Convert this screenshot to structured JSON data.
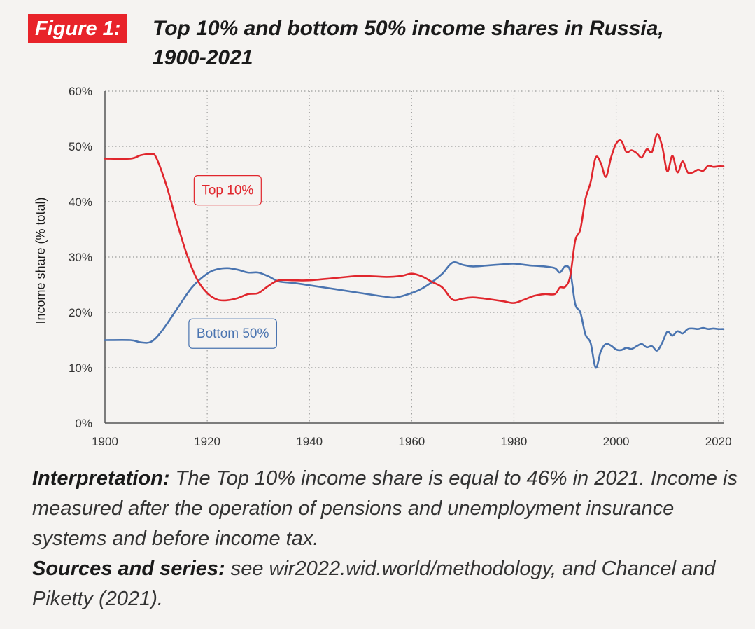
{
  "figure": {
    "badge": "Figure 1:",
    "title_line1": "Top 10% and bottom 50% income shares in Russia,",
    "title_line2": "1900-2021"
  },
  "chart_data": {
    "type": "line",
    "xlabel": "",
    "ylabel": "Income share (% total)",
    "xlim": [
      1900,
      2021
    ],
    "ylim": [
      0,
      60
    ],
    "x_ticks": [
      1900,
      1920,
      1940,
      1960,
      1980,
      2000,
      2020
    ],
    "y_ticks": [
      0,
      10,
      20,
      30,
      40,
      50,
      60
    ],
    "y_tick_labels": [
      "0%",
      "10%",
      "20%",
      "30%",
      "40%",
      "50%",
      "60%"
    ],
    "grid": true,
    "legend": "inline-labels",
    "series": [
      {
        "name": "Top 10%",
        "color": "#e0262d",
        "points": [
          [
            1900,
            47.8
          ],
          [
            1905,
            47.8
          ],
          [
            1907,
            48.4
          ],
          [
            1909,
            48.6
          ],
          [
            1910,
            48.0
          ],
          [
            1912,
            43.0
          ],
          [
            1914,
            36.5
          ],
          [
            1916,
            30.5
          ],
          [
            1918,
            26.0
          ],
          [
            1920,
            23.5
          ],
          [
            1922,
            22.3
          ],
          [
            1924,
            22.2
          ],
          [
            1926,
            22.6
          ],
          [
            1928,
            23.3
          ],
          [
            1930,
            23.5
          ],
          [
            1932,
            24.8
          ],
          [
            1934,
            25.8
          ],
          [
            1937,
            25.8
          ],
          [
            1940,
            25.8
          ],
          [
            1945,
            26.2
          ],
          [
            1950,
            26.6
          ],
          [
            1955,
            26.4
          ],
          [
            1958,
            26.6
          ],
          [
            1960,
            27.0
          ],
          [
            1962,
            26.5
          ],
          [
            1964,
            25.5
          ],
          [
            1966,
            24.5
          ],
          [
            1968,
            22.3
          ],
          [
            1970,
            22.5
          ],
          [
            1972,
            22.7
          ],
          [
            1975,
            22.4
          ],
          [
            1978,
            22.0
          ],
          [
            1980,
            21.7
          ],
          [
            1982,
            22.3
          ],
          [
            1984,
            23.0
          ],
          [
            1986,
            23.3
          ],
          [
            1988,
            23.3
          ],
          [
            1989,
            24.5
          ],
          [
            1990,
            24.6
          ],
          [
            1991,
            26.5
          ],
          [
            1992,
            33.0
          ],
          [
            1993,
            35.0
          ],
          [
            1994,
            40.5
          ],
          [
            1995,
            43.5
          ],
          [
            1996,
            48.0
          ],
          [
            1997,
            47.0
          ],
          [
            1998,
            44.5
          ],
          [
            1999,
            48.0
          ],
          [
            2000,
            50.5
          ],
          [
            2001,
            51.0
          ],
          [
            2002,
            49.0
          ],
          [
            2003,
            49.3
          ],
          [
            2004,
            48.8
          ],
          [
            2005,
            48.0
          ],
          [
            2006,
            49.5
          ],
          [
            2007,
            49.0
          ],
          [
            2008,
            52.2
          ],
          [
            2009,
            50.0
          ],
          [
            2010,
            45.5
          ],
          [
            2011,
            48.3
          ],
          [
            2012,
            45.3
          ],
          [
            2013,
            47.3
          ],
          [
            2014,
            45.3
          ],
          [
            2015,
            45.3
          ],
          [
            2016,
            45.8
          ],
          [
            2017,
            45.6
          ],
          [
            2018,
            46.5
          ],
          [
            2019,
            46.3
          ],
          [
            2020,
            46.4
          ],
          [
            2021,
            46.4
          ]
        ]
      },
      {
        "name": "Bottom 50%",
        "color": "#4a74b0",
        "points": [
          [
            1900,
            15.0
          ],
          [
            1905,
            15.0
          ],
          [
            1907,
            14.6
          ],
          [
            1909,
            14.7
          ],
          [
            1911,
            16.5
          ],
          [
            1914,
            20.5
          ],
          [
            1917,
            24.5
          ],
          [
            1920,
            27.0
          ],
          [
            1922,
            27.8
          ],
          [
            1924,
            28.0
          ],
          [
            1926,
            27.7
          ],
          [
            1928,
            27.2
          ],
          [
            1930,
            27.2
          ],
          [
            1932,
            26.5
          ],
          [
            1934,
            25.6
          ],
          [
            1937,
            25.3
          ],
          [
            1940,
            24.9
          ],
          [
            1945,
            24.2
          ],
          [
            1950,
            23.5
          ],
          [
            1955,
            22.8
          ],
          [
            1957,
            22.7
          ],
          [
            1960,
            23.5
          ],
          [
            1962,
            24.3
          ],
          [
            1964,
            25.5
          ],
          [
            1966,
            27.0
          ],
          [
            1968,
            29.0
          ],
          [
            1970,
            28.6
          ],
          [
            1972,
            28.3
          ],
          [
            1975,
            28.5
          ],
          [
            1978,
            28.7
          ],
          [
            1980,
            28.8
          ],
          [
            1983,
            28.5
          ],
          [
            1986,
            28.3
          ],
          [
            1988,
            28.0
          ],
          [
            1989,
            27.2
          ],
          [
            1990,
            28.3
          ],
          [
            1991,
            27.5
          ],
          [
            1992,
            21.5
          ],
          [
            1993,
            20.0
          ],
          [
            1994,
            16.0
          ],
          [
            1995,
            14.5
          ],
          [
            1996,
            10.0
          ],
          [
            1997,
            13.0
          ],
          [
            1998,
            14.3
          ],
          [
            1999,
            14.0
          ],
          [
            2000,
            13.3
          ],
          [
            2001,
            13.2
          ],
          [
            2002,
            13.6
          ],
          [
            2003,
            13.4
          ],
          [
            2004,
            13.9
          ],
          [
            2005,
            14.3
          ],
          [
            2006,
            13.7
          ],
          [
            2007,
            13.9
          ],
          [
            2008,
            13.1
          ],
          [
            2009,
            14.5
          ],
          [
            2010,
            16.5
          ],
          [
            2011,
            15.8
          ],
          [
            2012,
            16.6
          ],
          [
            2013,
            16.2
          ],
          [
            2014,
            17.0
          ],
          [
            2015,
            17.1
          ],
          [
            2016,
            17.0
          ],
          [
            2017,
            17.2
          ],
          [
            2018,
            17.0
          ],
          [
            2019,
            17.1
          ],
          [
            2020,
            17.0
          ],
          [
            2021,
            17.0
          ]
        ]
      }
    ]
  },
  "notes": {
    "interpretation_label": "Interpretation:",
    "interpretation_text": " The Top 10% income share is equal to 46% in 2021. Income is measured after the operation of pensions and unemployment insurance systems and before income tax.",
    "sources_label": "Sources and series:",
    "sources_text": " see wir2022.wid.world/methodology, and Chancel and Piketty (2021)."
  }
}
